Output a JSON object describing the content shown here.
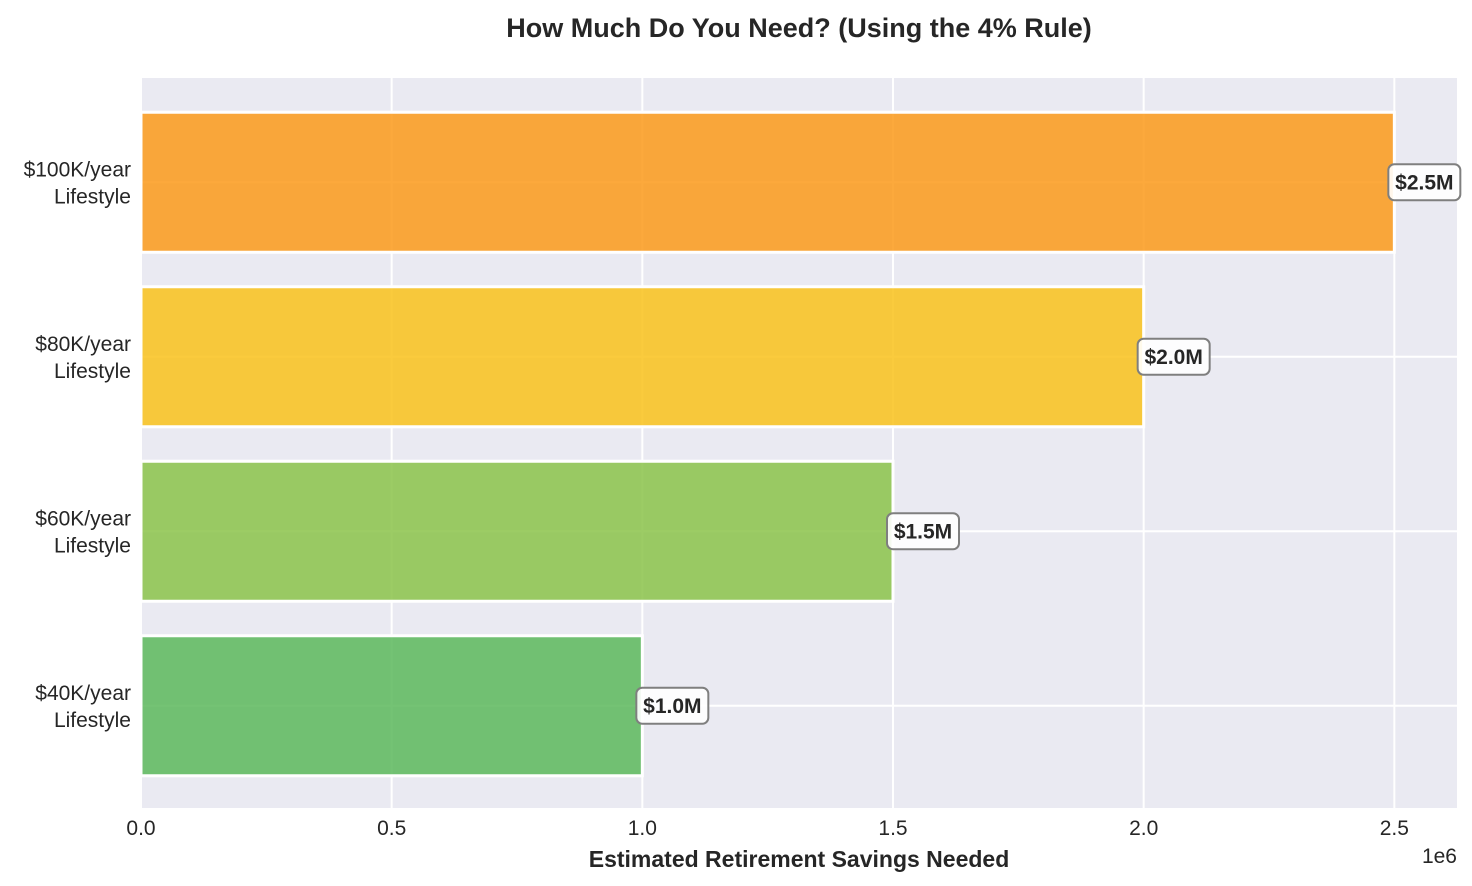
{
  "chart_data": {
    "type": "bar",
    "orientation": "horizontal",
    "title": "How Much Do You Need? (Using the 4% Rule)",
    "xlabel": "Estimated Retirement Savings Needed",
    "ylabel": "",
    "x_offset_label": "1e6",
    "xlim": [
      0,
      2625000
    ],
    "x_ticks": [
      0,
      500000,
      1000000,
      1500000,
      2000000,
      2500000
    ],
    "x_tick_labels": [
      "0.0",
      "0.5",
      "1.0",
      "1.5",
      "2.0",
      "2.5"
    ],
    "grid": true,
    "categories": [
      [
        "$40K/year",
        "Lifestyle"
      ],
      [
        "$60K/year",
        "Lifestyle"
      ],
      [
        "$80K/year",
        "Lifestyle"
      ],
      [
        "$100K/year",
        "Lifestyle"
      ]
    ],
    "values": [
      1000000,
      1500000,
      2000000,
      2500000
    ],
    "data_labels": [
      "$1.0M",
      "$1.5M",
      "$2.0M",
      "$2.5M"
    ],
    "colors": [
      "#5cb85c",
      "#8bc34a",
      "#f9c21b",
      "#fb9a1a"
    ],
    "background_color": "#eaeaf2"
  }
}
